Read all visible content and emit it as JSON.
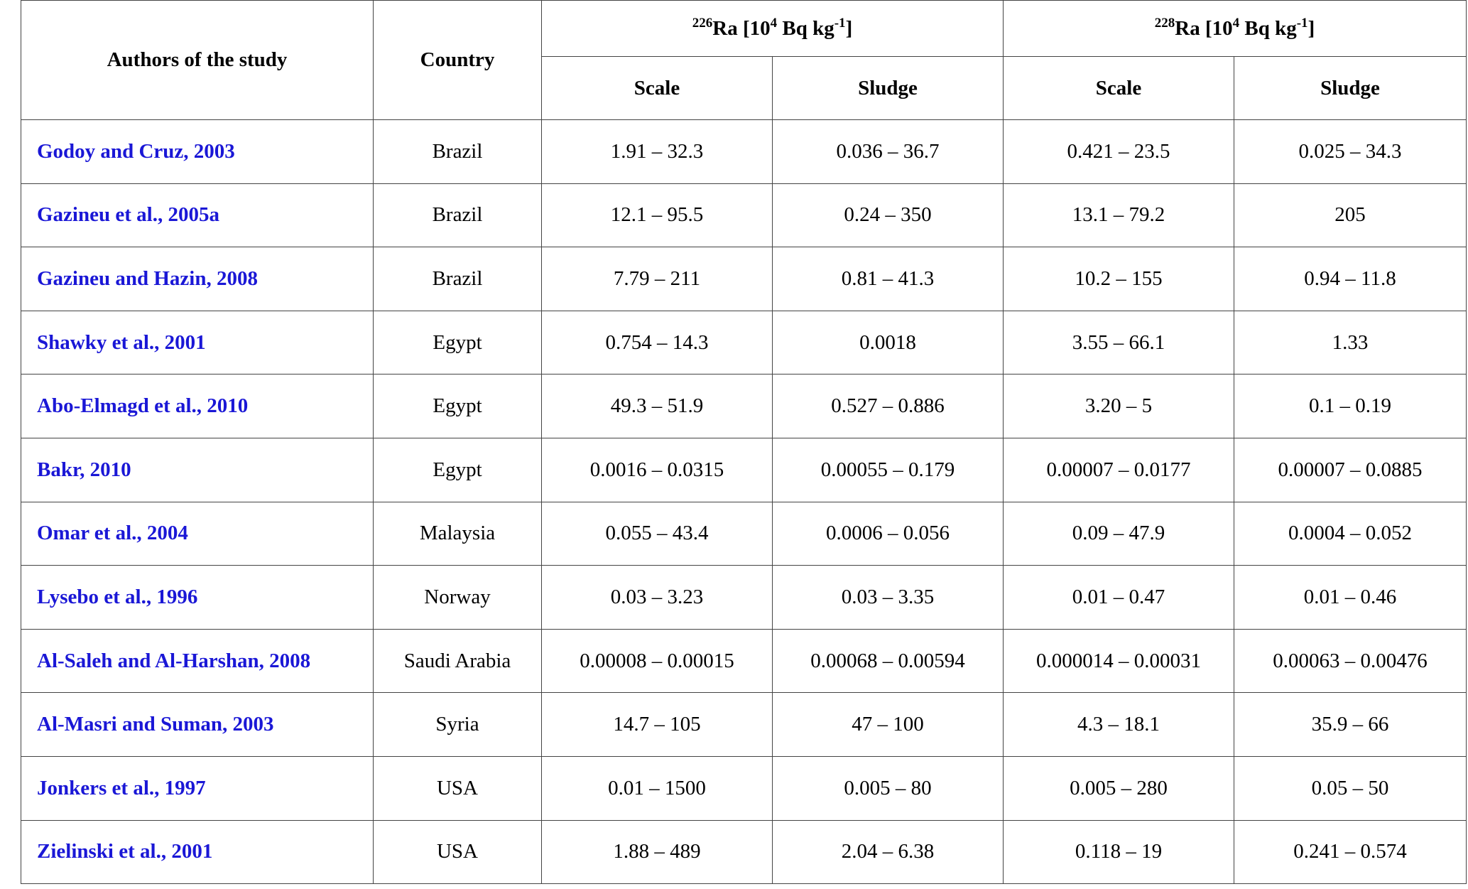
{
  "table": {
    "header": {
      "authors": "Authors of the study",
      "country": "Country",
      "groups": [
        {
          "label": [
            {
              "text": "226",
              "sup": true
            },
            {
              "text": "Ra [10"
            },
            {
              "text": "4",
              "sup": true
            },
            {
              "text": " Bq kg"
            },
            {
              "text": "-1",
              "sup": true
            },
            {
              "text": "]"
            }
          ]
        },
        {
          "label": [
            {
              "text": "228",
              "sup": true
            },
            {
              "text": "Ra [10"
            },
            {
              "text": "4",
              "sup": true
            },
            {
              "text": " Bq kg"
            },
            {
              "text": "-1",
              "sup": true
            },
            {
              "text": "]"
            }
          ]
        }
      ],
      "subheaders": [
        "Scale",
        "Sludge",
        "Scale",
        "Sludge"
      ]
    },
    "rows": [
      {
        "author": "Godoy and Cruz, 2003",
        "country": "Brazil",
        "values": [
          "1.91 – 32.3",
          "0.036 – 36.7",
          "0.421 – 23.5",
          "0.025 – 34.3"
        ]
      },
      {
        "author": "Gazineu et al., 2005a",
        "country": "Brazil",
        "values": [
          "12.1 – 95.5",
          "0.24 – 350",
          "13.1 – 79.2",
          "205"
        ]
      },
      {
        "author": "Gazineu and Hazin, 2008",
        "country": "Brazil",
        "values": [
          "7.79 – 211",
          "0.81 – 41.3",
          "10.2 – 155",
          "0.94 – 11.8"
        ]
      },
      {
        "author": "Shawky et al., 2001",
        "country": "Egypt",
        "values": [
          "0.754 – 14.3",
          "0.0018",
          "3.55 – 66.1",
          "1.33"
        ]
      },
      {
        "author": "Abo-Elmagd et al., 2010",
        "country": "Egypt",
        "values": [
          "49.3 – 51.9",
          "0.527 – 0.886",
          "3.20 – 5",
          "0.1 – 0.19"
        ]
      },
      {
        "author": "Bakr, 2010",
        "country": "Egypt",
        "values": [
          "0.0016 – 0.0315",
          "0.00055 – 0.179",
          "0.00007 – 0.0177",
          "0.00007 – 0.0885"
        ]
      },
      {
        "author": "Omar et al., 2004",
        "country": "Malaysia",
        "values": [
          "0.055 – 43.4",
          "0.0006 – 0.056",
          "0.09 – 47.9",
          "0.0004 – 0.052"
        ]
      },
      {
        "author": "Lysebo et al., 1996",
        "country": "Norway",
        "values": [
          "0.03 – 3.23",
          "0.03 – 3.35",
          "0.01 – 0.47",
          "0.01 – 0.46"
        ]
      },
      {
        "author": "Al-Saleh and Al-Harshan, 2008",
        "country": "Saudi Arabia",
        "values": [
          "0.00008 – 0.00015",
          "0.00068 – 0.00594",
          "0.000014 – 0.00031",
          "0.00063 – 0.00476"
        ]
      },
      {
        "author": "Al-Masri and Suman, 2003",
        "country": "Syria",
        "values": [
          "14.7 – 105",
          "47 – 100",
          "4.3 – 18.1",
          "35.9 – 66"
        ]
      },
      {
        "author": "Jonkers et al., 1997",
        "country": "USA",
        "values": [
          "0.01 – 1500",
          "0.005 – 80",
          "0.005 – 280",
          "0.05 – 50"
        ]
      },
      {
        "author": "Zielinski et al., 2001",
        "country": "USA",
        "values": [
          "1.88 – 489",
          "2.04 – 6.38",
          "0.118 – 19",
          "0.241 – 0.574"
        ]
      }
    ]
  }
}
